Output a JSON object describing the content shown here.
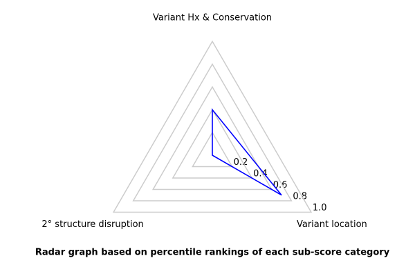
{
  "chart_data": {
    "type": "radar",
    "title": "Radar graph based on percentile rankings of each sub-score category",
    "categories": [
      "Variant Hx & Conservation",
      "Variant location",
      "2° structure disruption"
    ],
    "values": [
      0.4,
      0.7,
      0
    ],
    "color": "#0000ff",
    "grid_color": "#cccccc",
    "rlim": [
      0,
      1
    ],
    "rticks": [
      0.2,
      0.4,
      0.6,
      0.8,
      {
        "value": 1,
        "label": "1.0"
      }
    ],
    "grid": true
  }
}
